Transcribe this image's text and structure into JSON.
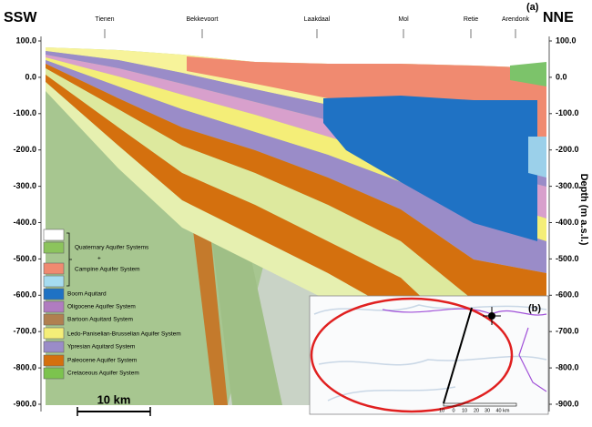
{
  "panel_a": {
    "label": "(a)",
    "left_direction": "SSW",
    "right_direction": "NNE",
    "towns": [
      "Tienen",
      "Bekkevoort",
      "Laakdaal",
      "Mol",
      "Retie",
      "Arendonk"
    ],
    "depth_ticks": [
      "100.0",
      "0.0",
      "-100.0",
      "-200.0",
      "-300.0",
      "-400.0",
      "-500.0",
      "-600.0",
      "-700.0",
      "-800.0",
      "-900.0"
    ],
    "axis_label": "Depth (m a.s.l.)",
    "scale_bar": "10 km"
  },
  "legend": [
    "Quaternary Aquifer Systems",
    "+",
    "Campine Aquifer System",
    "Boom Aquitard",
    "Oligocene Aquifer System",
    "Bartoon Aquitard System",
    "Ledo-Paniselian-Brusselian Aquifer System",
    "Ypresian Aquitard System",
    "Paleocene Aquifer System",
    "Cretaceous Aquifer System"
  ],
  "panel_b": {
    "label": "(b)",
    "scale_labels": [
      "10",
      "0",
      "10",
      "20",
      "30",
      "40 km"
    ]
  }
}
